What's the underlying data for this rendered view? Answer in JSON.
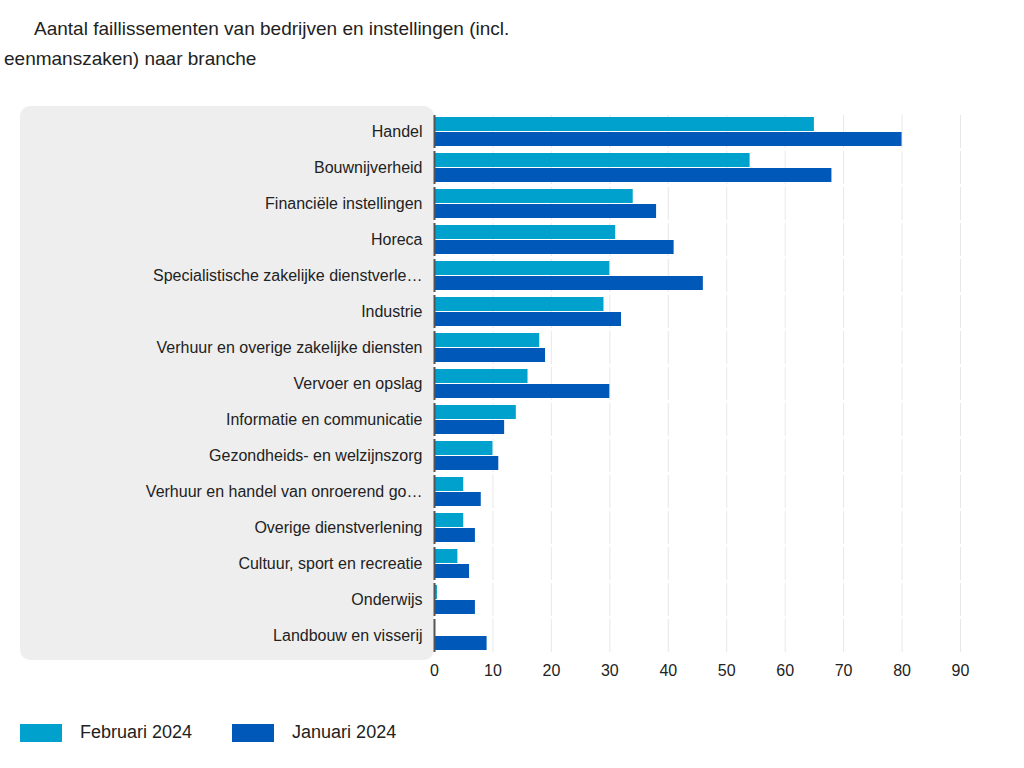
{
  "chart_data": {
    "type": "bar",
    "orientation": "horizontal",
    "title": "Aantal faillissementen van bedrijven en instellingen (incl. eenmanszaken) naar branche",
    "categories": [
      "Handel",
      "Bouwnijverheid",
      "Financiële instellingen",
      "Horeca",
      "Specialistische zakelijke dienstverle…",
      "Industrie",
      "Verhuur en overige zakelijke diensten",
      "Vervoer en opslag",
      "Informatie en communicatie",
      "Gezondheids- en welzijnszorg",
      "Verhuur en handel van onroerend go…",
      "Overige dienstverlening",
      "Cultuur, sport en recreatie",
      "Onderwijs",
      "Landbouw en visserij"
    ],
    "series": [
      {
        "name": "Februari 2024",
        "color": "#00a1cd",
        "values": [
          65,
          54,
          34,
          31,
          30,
          29,
          18,
          16,
          14,
          10,
          5,
          5,
          4,
          0.5,
          0
        ]
      },
      {
        "name": "Januari 2024",
        "color": "#0058b8",
        "values": [
          80,
          68,
          38,
          41,
          46,
          32,
          19,
          30,
          12,
          11,
          8,
          7,
          6,
          7,
          9
        ]
      }
    ],
    "xlim": [
      0,
      90
    ],
    "xticks": [
      0,
      10,
      20,
      30,
      40,
      50,
      60,
      70,
      80,
      90
    ],
    "grid": true,
    "legend": "bottom-left"
  }
}
